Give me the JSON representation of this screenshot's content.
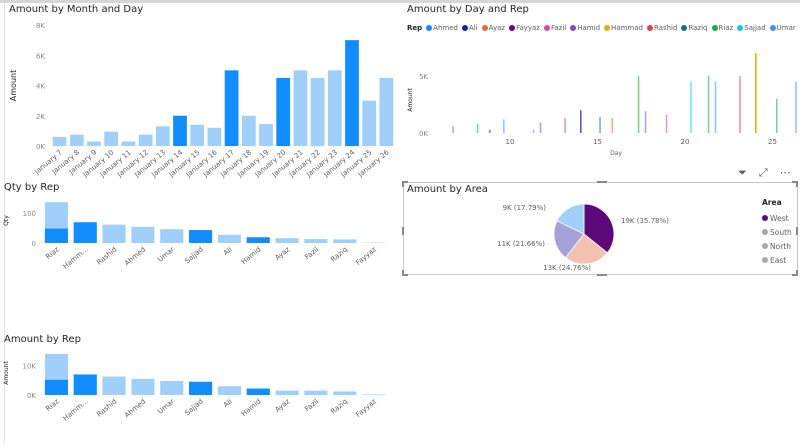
{
  "colors": {
    "bar_light": "#a0cffa",
    "bar_dark": "#118dff",
    "west": "#5c0a7a",
    "south": "#f2c1b0",
    "north": "#a6a1d9",
    "east": "#a0cffa",
    "legend_dim": "#a8a8a8"
  },
  "visual_header_icons": [
    "filter-icon",
    "focus-mode-icon",
    "more-options-icon"
  ],
  "chart_data": [
    {
      "type": "bar",
      "title": "Amount by Month and Day",
      "xlabel": "",
      "ylabel": "Amount",
      "ylim": [
        0,
        8000
      ],
      "yticks": [
        "0K",
        "2K",
        "4K",
        "6K",
        "8K"
      ],
      "categories": [
        "January 7",
        "January 8",
        "January 9",
        "January 10",
        "January 11",
        "January 12",
        "January 13",
        "January 14",
        "January 15",
        "January 16",
        "January 17",
        "January 18",
        "January 19",
        "January 20",
        "January 21",
        "January 22",
        "January 23",
        "January 24",
        "January 25",
        "January 26"
      ],
      "values": [
        600,
        750,
        300,
        950,
        300,
        750,
        1300,
        2000,
        1400,
        1200,
        5000,
        2000,
        1450,
        4500,
        5000,
        4500,
        5000,
        7000,
        3000,
        4500
      ],
      "highlighted": [
        false,
        false,
        false,
        false,
        false,
        false,
        false,
        true,
        false,
        false,
        true,
        false,
        false,
        true,
        false,
        false,
        false,
        true,
        false,
        false
      ]
    },
    {
      "type": "bar",
      "title": "Amount by Day and Rep",
      "xlabel": "Day",
      "ylabel": "Amount",
      "xlim": [
        6,
        26.3
      ],
      "ylim": [
        0,
        7500
      ],
      "xticks": [
        "10",
        "15",
        "20",
        "25"
      ],
      "yticks": [
        "0K",
        "5K"
      ],
      "legend_title": "Rep",
      "legend_position": "top-left",
      "reps": [
        {
          "name": "Ahmed",
          "color": "#118dff"
        },
        {
          "name": "Ali",
          "color": "#12239e"
        },
        {
          "name": "Ayaz",
          "color": "#e66c37"
        },
        {
          "name": "Fayyaz",
          "color": "#6b007b"
        },
        {
          "name": "Fazil",
          "color": "#e044a7"
        },
        {
          "name": "Hamid",
          "color": "#744ec2"
        },
        {
          "name": "Hammad",
          "color": "#d9b300"
        },
        {
          "name": "Rashid",
          "color": "#d64550"
        },
        {
          "name": "Raziq",
          "color": "#197278"
        },
        {
          "name": "Riaz",
          "color": "#1aab40"
        },
        {
          "name": "Sajjad",
          "color": "#15c6f4"
        },
        {
          "name": "Umar",
          "color": "#4092ff"
        }
      ],
      "points": [
        {
          "day": 6.7,
          "rep": "Rashid",
          "value": 600
        },
        {
          "day": 8.1,
          "rep": "Riaz",
          "value": 800
        },
        {
          "day": 8.8,
          "rep": "Fayyaz",
          "value": 300
        },
        {
          "day": 9.6,
          "rep": "Umar",
          "value": 1200
        },
        {
          "day": 11.3,
          "rep": "Umar",
          "value": 300
        },
        {
          "day": 11.7,
          "rep": "Hamid",
          "value": 900
        },
        {
          "day": 13.1,
          "rep": "Rashid",
          "value": 1300
        },
        {
          "day": 14.0,
          "rep": "Hamid",
          "value": 2000
        },
        {
          "day": 15.1,
          "rep": "Raziq",
          "value": 1400
        },
        {
          "day": 15.8,
          "rep": "Ayaz",
          "value": 1300
        },
        {
          "day": 17.3,
          "rep": "Riaz",
          "value": 5000
        },
        {
          "day": 17.7,
          "rep": "Hamid",
          "value": 1900
        },
        {
          "day": 18.9,
          "rep": "Fazil",
          "value": 1600
        },
        {
          "day": 20.3,
          "rep": "Sajjad",
          "value": 4500
        },
        {
          "day": 21.3,
          "rep": "Riaz",
          "value": 5000
        },
        {
          "day": 21.7,
          "rep": "Umar",
          "value": 4500
        },
        {
          "day": 23.1,
          "rep": "Rashid",
          "value": 5000
        },
        {
          "day": 24.0,
          "rep": "Hammad",
          "value": 7000
        },
        {
          "day": 25.2,
          "rep": "Riaz",
          "value": 3000
        },
        {
          "day": 26.3,
          "rep": "Umar",
          "value": 4500
        }
      ]
    },
    {
      "type": "bar",
      "title": "Qty by Rep",
      "xlabel": "",
      "ylabel": "Qty",
      "ylim": [
        0,
        150
      ],
      "yticks": [
        "0",
        "100"
      ],
      "categories": [
        "Riaz",
        "Hamm...",
        "Rashid",
        "Ahmed",
        "Umar",
        "Sajjad",
        "Ali",
        "Hamid",
        "Ayaz",
        "Fazil",
        "Raziq",
        "Fayyaz"
      ],
      "values": [
        136,
        69,
        61,
        54,
        46,
        43,
        27,
        19,
        16,
        13,
        12,
        1
      ],
      "highlighted_values": [
        48,
        69,
        0,
        0,
        0,
        43,
        0,
        19,
        0,
        0,
        0,
        0
      ]
    },
    {
      "type": "bar",
      "title": "Amount by Rep",
      "xlabel": "",
      "ylabel": "Amount",
      "ylim": [
        0,
        15000
      ],
      "yticks": [
        "0K",
        "10K"
      ],
      "categories": [
        "Riaz",
        "Hamm...",
        "Rashid",
        "Ahmed",
        "Umar",
        "Sajjad",
        "Ali",
        "Hamid",
        "Ayaz",
        "Fazil",
        "Raziq",
        "Fayyaz"
      ],
      "values": [
        14000,
        7000,
        6300,
        5500,
        4800,
        4500,
        3000,
        2200,
        1500,
        1500,
        1200,
        200
      ],
      "highlighted_values": [
        5200,
        7000,
        0,
        0,
        0,
        4500,
        0,
        2200,
        0,
        0,
        0,
        0
      ]
    },
    {
      "type": "pie",
      "title": "Amount by Area",
      "legend_title": "Area",
      "legend_position": "right",
      "slices": [
        {
          "label": "West",
          "value": 35.78,
          "text": "19K (35.78%)"
        },
        {
          "label": "South",
          "value": 24.76,
          "text": "13K (24.76%)"
        },
        {
          "label": "North",
          "value": 21.66,
          "text": "11K (21.66%)"
        },
        {
          "label": "East",
          "value": 17.79,
          "text": "9K (17.79%)"
        }
      ]
    }
  ]
}
